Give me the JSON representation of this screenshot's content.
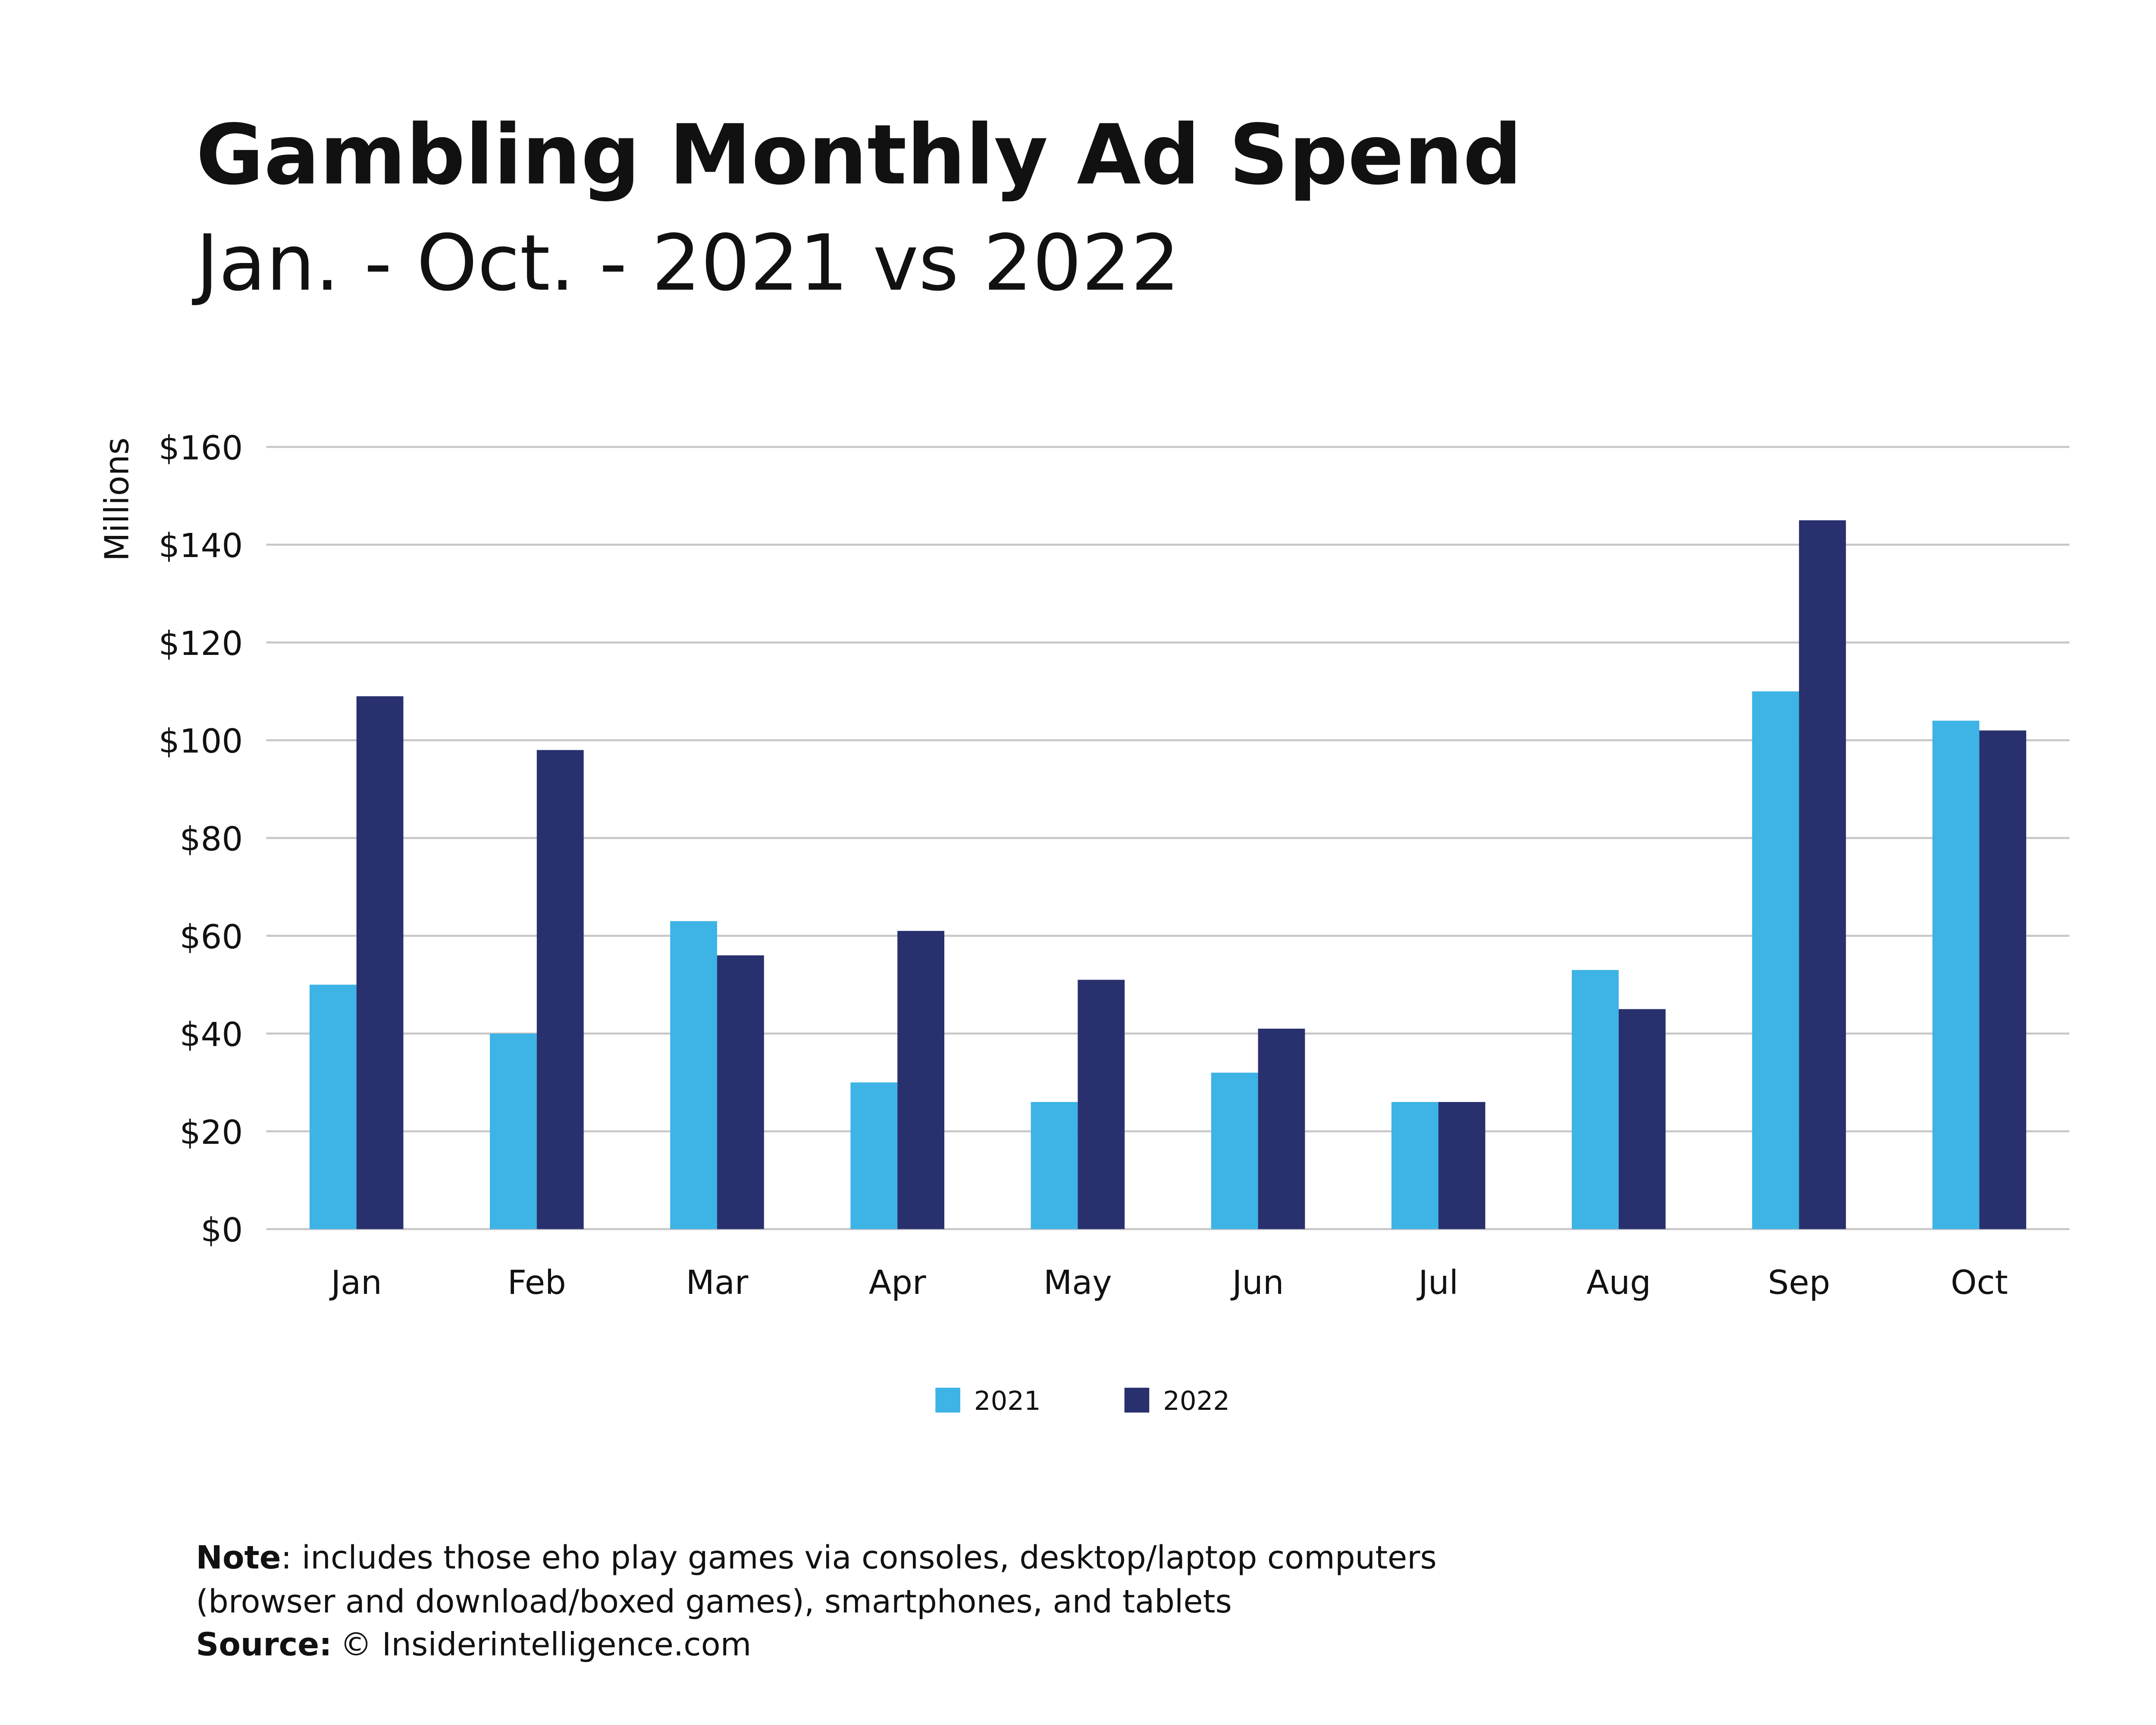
{
  "chart_data": {
    "type": "bar",
    "title": "Gambling Monthly Ad Spend",
    "subtitle": "Jan. - Oct. - 2021 vs 2022",
    "y_label": "Millions",
    "categories": [
      "Jan",
      "Feb",
      "Mar",
      "Apr",
      "May",
      "Jun",
      "Jul",
      "Aug",
      "Sep",
      "Oct"
    ],
    "series": [
      {
        "name": "2021",
        "color": "#3db3e6",
        "values": [
          50,
          40,
          63,
          30,
          26,
          32,
          26,
          53,
          110,
          104
        ]
      },
      {
        "name": "2022",
        "color": "#29306e",
        "values": [
          109,
          98,
          56,
          61,
          51,
          41,
          26,
          45,
          145,
          102
        ]
      }
    ],
    "ylim": [
      0,
      160
    ],
    "yticks": [
      {
        "value": 0,
        "label": "$0"
      },
      {
        "value": 20,
        "label": "$20"
      },
      {
        "value": 40,
        "label": "$40"
      },
      {
        "value": 60,
        "label": "$60"
      },
      {
        "value": 80,
        "label": "$80"
      },
      {
        "value": 100,
        "label": "$100"
      },
      {
        "value": 120,
        "label": "$120"
      },
      {
        "value": 140,
        "label": "$140"
      },
      {
        "value": 160,
        "label": "$160"
      }
    ],
    "grid": true,
    "legend": "bottom",
    "note": {
      "label": "Note",
      "text": [
        ": includes those eho play games via consoles, desktop/laptop computers",
        "(browser and download/boxed games), smartphones, and tablets"
      ]
    },
    "source": {
      "label": "Source:",
      "text": "© Insiderintelligence.com"
    }
  }
}
